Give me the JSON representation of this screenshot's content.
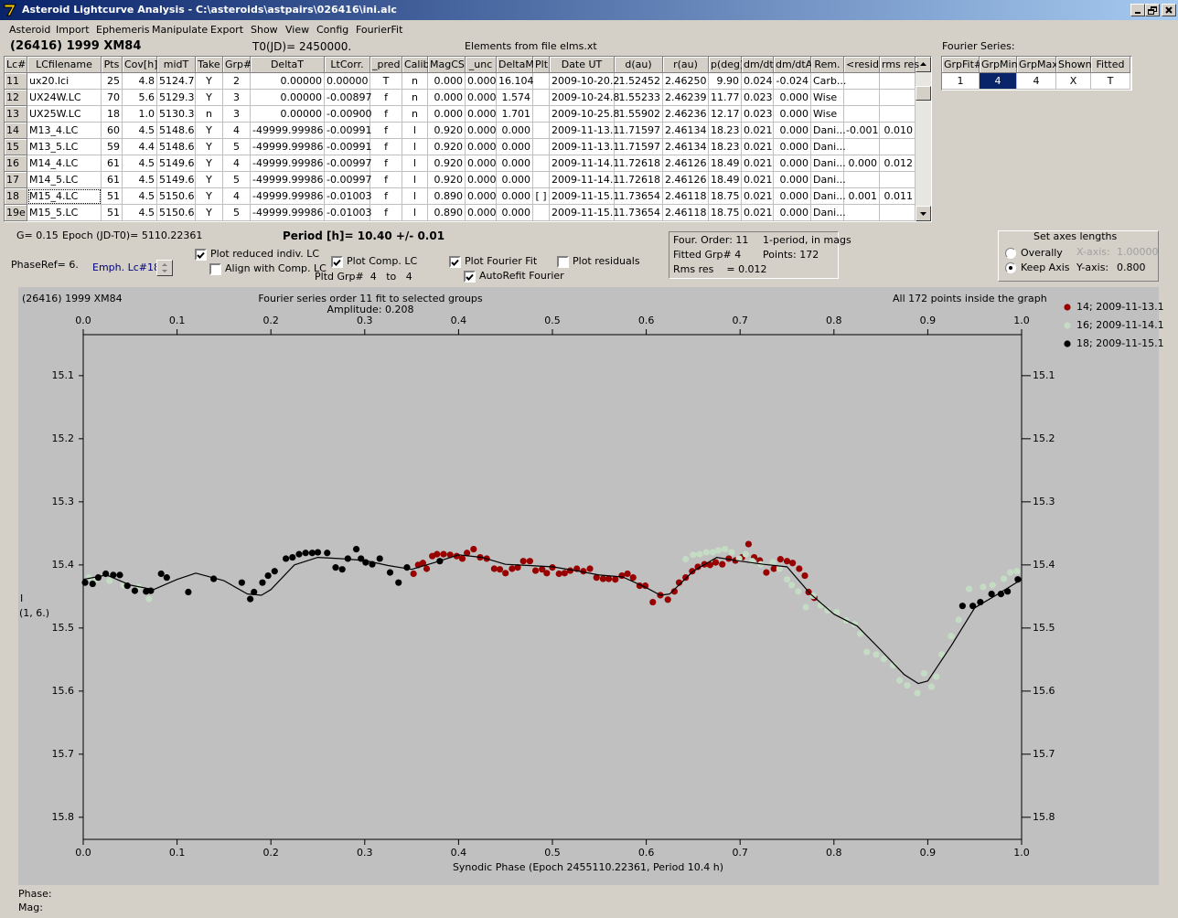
{
  "window": {
    "title": "Asteroid Lightcurve Analysis - C:\\asteroids\\astpairs\\026416\\ini.alc",
    "menu": [
      "Asteroid",
      "Import",
      "Ephemeris",
      "Manipulate",
      "Export",
      "Show",
      "View",
      "Config",
      "FourierFit"
    ]
  },
  "header": {
    "object": "(26416) 1999 XM84",
    "t0": "T0(JD)= 2450000.",
    "elements": "Elements from file elms.xt",
    "fourier_label": "Fourier Series:"
  },
  "table": {
    "columns": [
      "Lc#",
      "LCfilename",
      "Pts",
      "Cov[h]",
      "midT",
      "Take",
      "Grp#",
      "DeltaT",
      "LtCorr.",
      "_pred",
      "Calib.",
      "MagCS",
      "_unc",
      "DeltaM",
      "Plt",
      "Date UT",
      "d(au)",
      "r(au)",
      "p(deg)",
      "dm/dt",
      "dm/dtA",
      "Rem.",
      "<resid>",
      "rms res"
    ],
    "rows": [
      [
        "11",
        "ux20.lci",
        "25",
        "4.8",
        "5124.7",
        "Y",
        "2",
        "0.00000",
        "0.00000",
        "T",
        "n",
        "0.000",
        "0.000",
        "16.104",
        null,
        "2009-10-20.2",
        "1.52452",
        "2.46250",
        "9.90",
        "0.024",
        "-0.024",
        "Carb...",
        null,
        null
      ],
      [
        "12",
        "UX24W.LC",
        "70",
        "5.6",
        "5129.3",
        "Y",
        "3",
        "0.00000",
        "-0.00897",
        "f",
        "n",
        "0.000",
        "0.000",
        "1.574",
        null,
        "2009-10-24.8",
        "1.55233",
        "2.46239",
        "11.77",
        "0.023",
        "0.000",
        "Wise",
        null,
        null
      ],
      [
        "13",
        "UX25W.LC",
        "18",
        "1.0",
        "5130.3",
        "n",
        "3",
        "0.00000",
        "-0.00900",
        "f",
        "n",
        "0.000",
        "0.000",
        "1.701",
        null,
        "2009-10-25.8",
        "1.55902",
        "2.46236",
        "12.17",
        "0.023",
        "0.000",
        "Wise",
        null,
        null
      ],
      [
        "14",
        "M13_4.LC",
        "60",
        "4.5",
        "5148.6",
        "Y",
        "4",
        "-49999.99986",
        "-0.00991",
        "f",
        "l",
        "0.920",
        "0.000",
        "0.000",
        null,
        "2009-11-13.1",
        "1.71597",
        "2.46134",
        "18.23",
        "0.021",
        "0.000",
        "Dani...",
        "-0.001",
        "0.010"
      ],
      [
        "15",
        "M13_5.LC",
        "59",
        "4.4",
        "5148.6",
        "Y",
        "5",
        "-49999.99986",
        "-0.00991",
        "f",
        "l",
        "0.920",
        "0.000",
        "0.000",
        null,
        "2009-11-13.1",
        "1.71597",
        "2.46134",
        "18.23",
        "0.021",
        "0.000",
        "Dani...",
        null,
        null
      ],
      [
        "16",
        "M14_4.LC",
        "61",
        "4.5",
        "5149.6",
        "Y",
        "4",
        "-49999.99986",
        "-0.00997",
        "f",
        "l",
        "0.920",
        "0.000",
        "0.000",
        null,
        "2009-11-14.1",
        "1.72618",
        "2.46126",
        "18.49",
        "0.021",
        "0.000",
        "Dani...",
        "0.000",
        "0.012"
      ],
      [
        "17",
        "M14_5.LC",
        "61",
        "4.5",
        "5149.6",
        "Y",
        "5",
        "-49999.99986",
        "-0.00997",
        "f",
        "l",
        "0.920",
        "0.000",
        "0.000",
        null,
        "2009-11-14.1",
        "1.72618",
        "2.46126",
        "18.49",
        "0.021",
        "0.000",
        "Dani...",
        null,
        null
      ],
      [
        "18",
        "M15_4.LC",
        "51",
        "4.5",
        "5150.6",
        "Y",
        "4",
        "-49999.99986",
        "-0.01003",
        "f",
        "l",
        "0.890",
        "0.000",
        "0.000",
        "[ ]",
        "2009-11-15.1",
        "1.73654",
        "2.46118",
        "18.75",
        "0.021",
        "0.000",
        "Dani...",
        "0.001",
        "0.011"
      ],
      [
        "19e",
        "M15_5.LC",
        "51",
        "4.5",
        "5150.6",
        "Y",
        "5",
        "-49999.99986",
        "-0.01003",
        "f",
        "l",
        "0.890",
        "0.000",
        "0.000",
        null,
        "2009-11-15.1",
        "1.73654",
        "2.46118",
        "18.75",
        "0.021",
        "0.000",
        "Dani...",
        null,
        null
      ]
    ]
  },
  "fourier_table": {
    "columns": [
      "GrpFit#",
      "GrpMin",
      "GrpMax",
      "Shown",
      "Fitted"
    ],
    "rows": [
      [
        "1",
        "4",
        "4",
        "X",
        "T"
      ]
    ]
  },
  "controls": {
    "g": "G= 0.15",
    "epoch": "Epoch (JD-T0)= 5110.22361",
    "period": "Period [h]= 10.40 +/- 0.01",
    "phaseref": "PhaseRef= 6.",
    "emph": "Emph. Lc#18:",
    "pltd_grp": "Pltd Grp#  4   to   4",
    "checkboxes": [
      {
        "label": "Plot reduced indiv. LC",
        "checked": true
      },
      {
        "label": "Align with Comp. LC",
        "checked": false
      },
      {
        "label": "Plot Comp. LC",
        "checked": true
      },
      {
        "label": "Plot Fourier Fit",
        "checked": true
      },
      {
        "label": "AutoRefit Fourier",
        "checked": true
      },
      {
        "label": "Plot residuals",
        "checked": false
      }
    ]
  },
  "info": [
    "Four. Order: 11",
    "1-period, in mags",
    "Fitted Grp# 4",
    "Points: 172",
    "Rms res    = 0.012"
  ],
  "axes_box": {
    "title": "Set axes lengths",
    "radios": [
      {
        "label": "Overally",
        "selected": false
      },
      {
        "label": "Keep Axis",
        "selected": true
      }
    ],
    "x_label": "X-axis:",
    "x_value": "1.00000",
    "y_label": "Y-axis:",
    "y_value": "0.800"
  },
  "status": [
    "Phase:",
    "Mag:"
  ],
  "chart_data": {
    "type": "scatter",
    "title": "(26416) 1999 XM84",
    "subtitle": "Fourier series order 11 fit to selected groups",
    "annotations": [
      "Amplitude: 0.208",
      "All 172 points inside the graph"
    ],
    "xlabel": "Synodic Phase (Epoch 2455110.22361, Period 10.4 h)",
    "ylabel": [
      "I",
      "(1, 6.)"
    ],
    "xlim": [
      0,
      1
    ],
    "ylim": [
      15.035,
      15.835
    ],
    "y_inverted": true,
    "xticks": [
      {
        "value": 0,
        "label": "0.0"
      },
      0.1,
      0.2,
      0.3,
      0.4,
      0.5,
      0.6,
      0.7,
      0.8,
      0.9,
      {
        "value": 1,
        "label": "1.0"
      }
    ],
    "yticks": [
      15.1,
      15.2,
      15.3,
      15.4,
      15.5,
      15.6,
      15.7,
      15.8
    ],
    "legend": "right outside",
    "series": [
      {
        "name": "14; 2009-11-13.1",
        "color": "#990000",
        "x": [
          0.352,
          0.357,
          0.362,
          0.366,
          0.372,
          0.377,
          0.384,
          0.391,
          0.398,
          0.404,
          0.409,
          0.416,
          0.423,
          0.43,
          0.438,
          0.444,
          0.45,
          0.457,
          0.463,
          0.469,
          0.476,
          0.482,
          0.489,
          0.494,
          0.5,
          0.507,
          0.513,
          0.519,
          0.526,
          0.533,
          0.54,
          0.547,
          0.554,
          0.56,
          0.567,
          0.574,
          0.58,
          0.586,
          0.593,
          0.599,
          0.607,
          0.615,
          0.623,
          0.63,
          0.635,
          0.642,
          0.649,
          0.655,
          0.662,
          0.668,
          0.674,
          0.681,
          0.688,
          0.695,
          0.702,
          0.709,
          0.715,
          0.721,
          0.728,
          0.736,
          0.743,
          0.75,
          0.756,
          0.763,
          0.769,
          0.773,
          0.779
        ],
        "values": [
          15.414,
          15.4,
          15.397,
          15.406,
          15.386,
          15.383,
          15.383,
          15.384,
          15.386,
          15.39,
          15.381,
          15.375,
          15.388,
          15.39,
          15.406,
          15.407,
          15.413,
          15.406,
          15.404,
          15.394,
          15.394,
          15.409,
          15.407,
          15.413,
          15.404,
          15.414,
          15.413,
          15.409,
          15.406,
          15.41,
          15.406,
          15.42,
          15.422,
          15.422,
          15.423,
          15.417,
          15.414,
          15.42,
          15.433,
          15.433,
          15.459,
          15.448,
          15.455,
          15.442,
          15.428,
          15.42,
          15.41,
          15.403,
          15.399,
          15.4,
          15.396,
          15.399,
          15.39,
          15.393,
          15.388,
          15.367,
          15.388,
          15.393,
          15.412,
          15.406,
          15.391,
          15.394,
          15.397,
          15.406,
          15.417,
          15.443,
          15.452
        ]
      },
      {
        "name": "16; 2009-11-14.1",
        "color": "#c4dcc4",
        "x": [
          0.006,
          0.014,
          0.028,
          0.043,
          0.059,
          0.07,
          0.642,
          0.65,
          0.657,
          0.664,
          0.671,
          0.677,
          0.684,
          0.691,
          0.699,
          0.706,
          0.713,
          0.722,
          0.735,
          0.742,
          0.75,
          0.755,
          0.762,
          0.77,
          0.778,
          0.786,
          0.793,
          0.803,
          0.813,
          0.822,
          0.828,
          0.835,
          0.845,
          0.853,
          0.863,
          0.87,
          0.878,
          0.889,
          0.896,
          0.904,
          0.909,
          0.915,
          0.925,
          0.933,
          0.944,
          0.959,
          0.969,
          0.981,
          0.988,
          0.995
        ],
        "values": [
          15.42,
          15.423,
          15.425,
          15.432,
          15.435,
          15.454,
          15.391,
          15.384,
          15.383,
          15.38,
          15.38,
          15.377,
          15.375,
          15.38,
          15.39,
          15.383,
          15.394,
          15.399,
          15.396,
          15.406,
          15.423,
          15.432,
          15.442,
          15.467,
          15.449,
          15.464,
          15.472,
          15.475,
          15.488,
          15.494,
          15.509,
          15.538,
          15.542,
          15.549,
          15.559,
          15.583,
          15.591,
          15.603,
          15.572,
          15.593,
          15.577,
          15.542,
          15.513,
          15.487,
          15.438,
          15.435,
          15.432,
          15.422,
          15.412,
          15.41
        ]
      },
      {
        "name": "18; 2009-11-15.1",
        "color": "#000000",
        "x": [
          0.002,
          0.01,
          0.016,
          0.024,
          0.032,
          0.039,
          0.047,
          0.055,
          0.067,
          0.072,
          0.083,
          0.089,
          0.112,
          0.139,
          0.169,
          0.178,
          0.182,
          0.191,
          0.197,
          0.204,
          0.216,
          0.223,
          0.23,
          0.237,
          0.244,
          0.25,
          0.26,
          0.269,
          0.276,
          0.282,
          0.291,
          0.296,
          0.301,
          0.308,
          0.316,
          0.327,
          0.336,
          0.345,
          0.38,
          0.937,
          0.948,
          0.956,
          0.968,
          0.978,
          0.985,
          0.996
        ],
        "values": [
          15.428,
          15.43,
          15.42,
          15.414,
          15.416,
          15.416,
          15.433,
          15.441,
          15.442,
          15.441,
          15.414,
          15.42,
          15.443,
          15.422,
          15.428,
          15.454,
          15.443,
          15.428,
          15.417,
          15.41,
          15.39,
          15.388,
          15.383,
          15.381,
          15.381,
          15.38,
          15.381,
          15.404,
          15.407,
          15.39,
          15.375,
          15.39,
          15.396,
          15.399,
          15.39,
          15.412,
          15.428,
          15.404,
          15.394,
          15.465,
          15.465,
          15.459,
          15.446,
          15.446,
          15.442,
          15.423
        ]
      }
    ],
    "fit": {
      "color": "#000000",
      "x": [
        0,
        0.025,
        0.05,
        0.075,
        0.1,
        0.12,
        0.15,
        0.175,
        0.19,
        0.2,
        0.225,
        0.25,
        0.275,
        0.3,
        0.325,
        0.35,
        0.375,
        0.4,
        0.425,
        0.45,
        0.475,
        0.5,
        0.525,
        0.55,
        0.575,
        0.6,
        0.615,
        0.625,
        0.65,
        0.675,
        0.7,
        0.725,
        0.75,
        0.775,
        0.8,
        0.825,
        0.85,
        0.875,
        0.89,
        0.9,
        0.925,
        0.95,
        0.975,
        1
      ],
      "y": [
        15.423,
        15.416,
        15.432,
        15.439,
        15.423,
        15.413,
        15.425,
        15.446,
        15.448,
        15.439,
        15.4,
        15.388,
        15.39,
        15.393,
        15.401,
        15.407,
        15.396,
        15.384,
        15.388,
        15.399,
        15.401,
        15.403,
        15.409,
        15.416,
        15.419,
        15.436,
        15.448,
        15.446,
        15.41,
        15.388,
        15.394,
        15.399,
        15.403,
        15.446,
        15.478,
        15.497,
        15.535,
        15.574,
        15.588,
        15.584,
        15.528,
        15.468,
        15.446,
        15.423
      ]
    }
  }
}
